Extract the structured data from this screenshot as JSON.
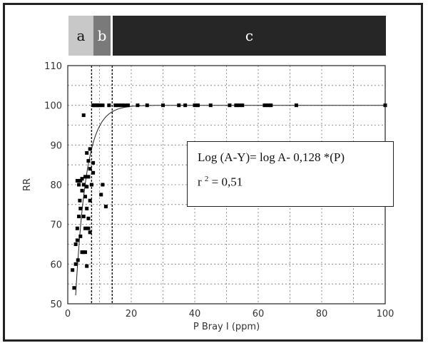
{
  "chart_data": {
    "type": "scatter",
    "xlabel": "P Bray I (ppm)",
    "ylabel": "RR",
    "xlim": [
      0,
      100
    ],
    "ylim": [
      50,
      110
    ],
    "x_ticks": [
      0,
      20,
      40,
      60,
      80,
      100
    ],
    "y_ticks": [
      50,
      60,
      70,
      80,
      90,
      100,
      110
    ],
    "grid": true,
    "vertical_lines": [
      7.5,
      14
    ],
    "zones": [
      {
        "label": "a",
        "x_start": 0,
        "x_end": 8,
        "color": "#c8c8c8"
      },
      {
        "label": "b",
        "x_start": 8,
        "x_end": 13,
        "color": "#7a7a7a"
      },
      {
        "label": "c",
        "x_start": 13,
        "x_end": 100,
        "color": "#262626"
      }
    ],
    "fit": {
      "A": 100,
      "k": 0.128,
      "label": "Log (A-Y)= log A- 0,128 *(P)"
    },
    "r2": {
      "prefix": "r",
      "exponent": "2",
      "value_text": " = 0,51"
    },
    "points": [
      [
        1.5,
        58.5
      ],
      [
        2,
        54
      ],
      [
        2.5,
        60
      ],
      [
        2.5,
        65
      ],
      [
        3,
        81
      ],
      [
        3,
        69
      ],
      [
        3,
        66
      ],
      [
        3.2,
        61
      ],
      [
        3.5,
        80
      ],
      [
        3.5,
        72
      ],
      [
        3.8,
        76
      ],
      [
        4,
        81
      ],
      [
        4,
        74
      ],
      [
        4,
        67
      ],
      [
        4.5,
        81.5
      ],
      [
        4.5,
        78.5
      ],
      [
        4.5,
        63
      ],
      [
        5,
        97.5
      ],
      [
        5,
        80
      ],
      [
        5,
        72
      ],
      [
        5,
        63
      ],
      [
        5.5,
        82
      ],
      [
        5.5,
        77
      ],
      [
        5.5,
        69
      ],
      [
        5.5,
        63
      ],
      [
        6,
        88
      ],
      [
        6,
        79.5
      ],
      [
        6,
        74
      ],
      [
        6,
        59.5
      ],
      [
        6.5,
        86
      ],
      [
        6.5,
        82
      ],
      [
        6.5,
        71.5
      ],
      [
        6.5,
        69
      ],
      [
        7,
        89
      ],
      [
        7,
        84
      ],
      [
        7,
        76
      ],
      [
        7,
        68
      ],
      [
        7.5,
        80
      ],
      [
        8,
        100
      ],
      [
        8,
        85.5
      ],
      [
        8,
        83
      ],
      [
        8.5,
        100
      ],
      [
        9,
        100
      ],
      [
        9.5,
        100
      ],
      [
        10,
        100
      ],
      [
        10.5,
        77.5
      ],
      [
        11,
        100
      ],
      [
        11,
        80
      ],
      [
        12,
        74.5
      ],
      [
        13,
        100
      ],
      [
        15,
        100
      ],
      [
        16,
        100
      ],
      [
        17,
        100
      ],
      [
        18,
        100
      ],
      [
        19,
        100
      ],
      [
        22,
        100
      ],
      [
        25,
        100
      ],
      [
        30,
        100
      ],
      [
        35,
        100
      ],
      [
        37,
        100
      ],
      [
        40,
        100
      ],
      [
        41,
        100
      ],
      [
        45,
        100
      ],
      [
        51,
        100
      ],
      [
        53,
        100
      ],
      [
        54,
        100
      ],
      [
        55,
        100
      ],
      [
        62,
        100
      ],
      [
        63,
        100
      ],
      [
        64,
        100
      ],
      [
        72,
        100
      ],
      [
        100,
        100
      ]
    ]
  }
}
